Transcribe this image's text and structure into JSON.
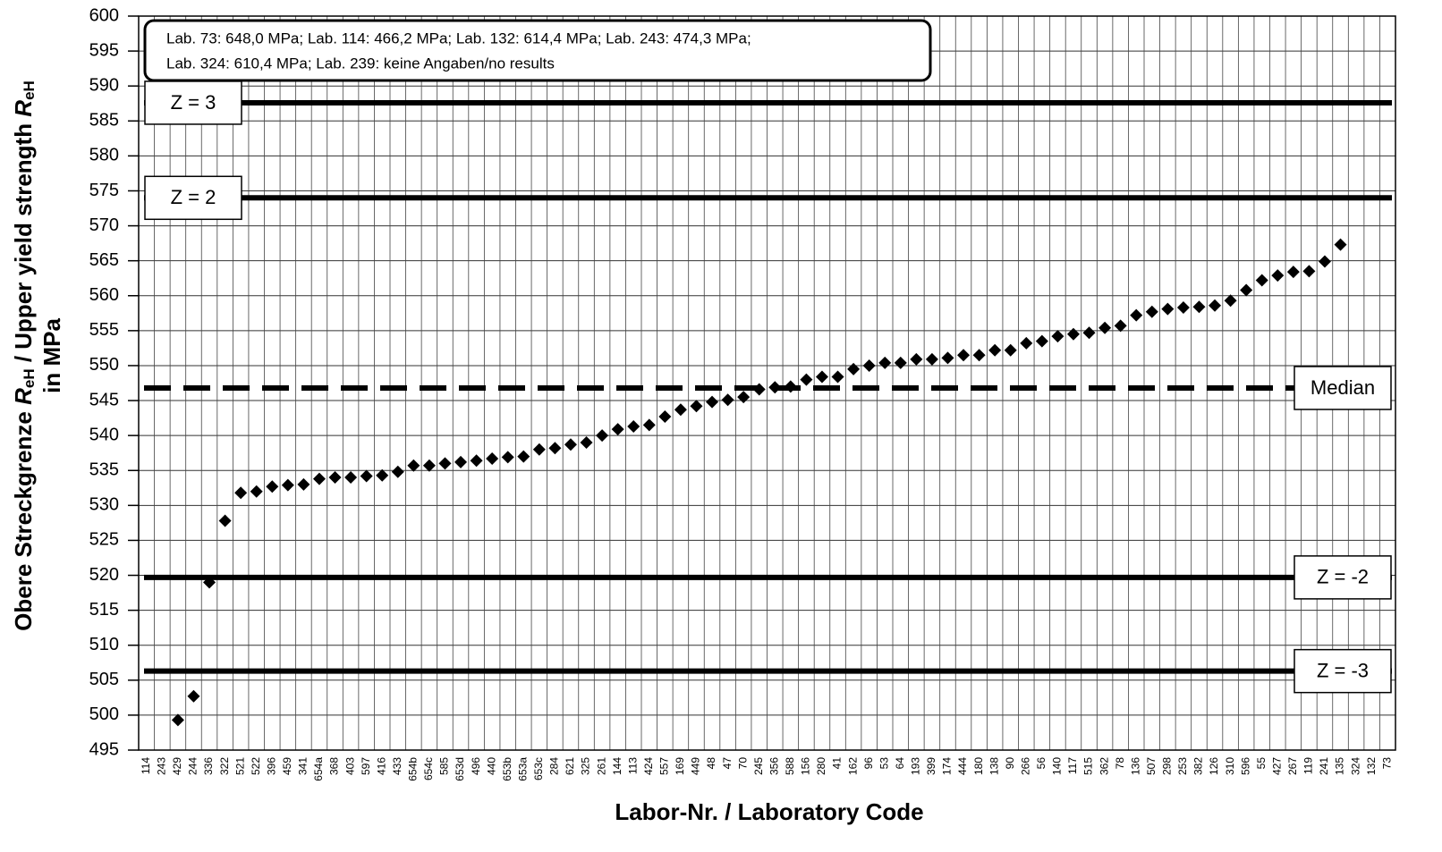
{
  "chart_data": {
    "type": "scatter",
    "annotation": [
      "Lab. 73: 648,0 MPa; Lab. 114: 466,2 MPa; Lab. 132: 614,4 MPa; Lab. 243: 474,3 MPa;",
      "Lab. 324: 610,4 MPa; Lab. 239: keine Angaben/no  results"
    ],
    "xlabel": "Labor-Nr. / Laboratory Code",
    "ylabel": {
      "line1": [
        "Obere Streckgrenze ",
        "R",
        "eH",
        " / Upper yield strength ",
        "R",
        "eH"
      ],
      "line2": "in MPa"
    },
    "categories": [
      "114",
      "243",
      "429",
      "244",
      "336",
      "322",
      "521",
      "522",
      "396",
      "459",
      "341",
      "654a",
      "368",
      "403",
      "597",
      "416",
      "433",
      "654b",
      "654c",
      "585",
      "653d",
      "496",
      "440",
      "653b",
      "653a",
      "653c",
      "284",
      "621",
      "325",
      "261",
      "144",
      "113",
      "424",
      "557",
      "169",
      "449",
      "48",
      "47",
      "70",
      "245",
      "356",
      "588",
      "156",
      "280",
      "41",
      "162",
      "96",
      "53",
      "64",
      "193",
      "399",
      "174",
      "444",
      "180",
      "138",
      "90",
      "266",
      "56",
      "140",
      "117",
      "515",
      "362",
      "78",
      "136",
      "507",
      "298",
      "253",
      "382",
      "126",
      "310",
      "596",
      "55",
      "427",
      "267",
      "119",
      "241",
      "135",
      "324",
      "132",
      "73"
    ],
    "values": [
      null,
      null,
      499.3,
      502.7,
      519.0,
      527.8,
      531.8,
      532.0,
      532.7,
      532.9,
      533.0,
      533.8,
      534.0,
      534.0,
      534.2,
      534.3,
      534.8,
      535.7,
      535.7,
      536.0,
      536.2,
      536.4,
      536.7,
      536.9,
      537.0,
      538.0,
      538.2,
      538.7,
      539.0,
      540.0,
      540.9,
      541.3,
      541.5,
      542.7,
      543.7,
      544.2,
      544.8,
      545.1,
      545.5,
      546.6,
      546.9,
      547.0,
      548.0,
      548.4,
      548.4,
      549.5,
      550.0,
      550.4,
      550.4,
      550.9,
      550.9,
      551.1,
      551.5,
      551.5,
      552.2,
      552.2,
      553.2,
      553.5,
      554.2,
      554.5,
      554.7,
      555.4,
      555.7,
      557.2,
      557.7,
      558.1,
      558.3,
      558.4,
      558.6,
      559.3,
      560.8,
      562.2,
      562.9,
      563.4,
      563.5,
      564.9,
      567.3,
      null,
      null,
      null
    ],
    "color": "#000000",
    "reference_lines": [
      {
        "label": "Z = 3",
        "value": 587.6,
        "style": "solid",
        "label_position": "left"
      },
      {
        "label": "Z = 2",
        "value": 574.0,
        "style": "solid",
        "label_position": "left"
      },
      {
        "label": "Median",
        "value": 546.8,
        "style": "dashed",
        "label_position": "right"
      },
      {
        "label": "Z = -2",
        "value": 519.7,
        "style": "solid",
        "label_position": "right"
      },
      {
        "label": "Z = -3",
        "value": 506.3,
        "style": "solid",
        "label_position": "right"
      }
    ],
    "ylim": [
      495,
      600
    ],
    "yticks": [
      495,
      500,
      505,
      510,
      515,
      520,
      525,
      530,
      535,
      540,
      545,
      550,
      555,
      560,
      565,
      570,
      575,
      580,
      585,
      590,
      595,
      600
    ],
    "grid": true
  }
}
